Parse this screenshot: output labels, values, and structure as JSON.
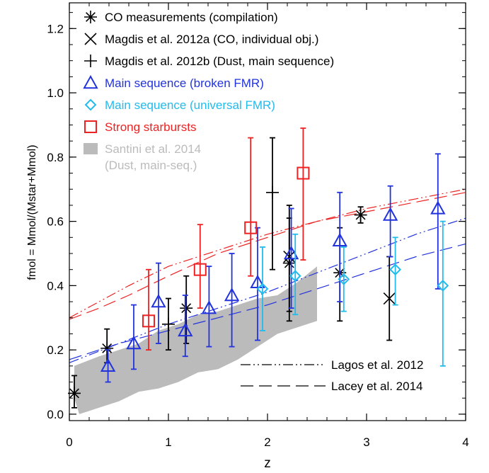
{
  "chart_data": {
    "type": "scatter",
    "xlabel": "z",
    "ylabel": "fmol = Mmol/(Mstar+Mmol)",
    "xlim": [
      0,
      4
    ],
    "ylim": [
      -0.02,
      1.28
    ],
    "x_ticks": [
      "0",
      "1",
      "2",
      "3",
      "4"
    ],
    "y_ticks": [
      "0.0",
      "0.2",
      "0.4",
      "0.6",
      "0.8",
      "1.0",
      "1.2"
    ],
    "x_tick_values": [
      0,
      1,
      2,
      3,
      4
    ],
    "y_tick_values": [
      0.0,
      0.2,
      0.4,
      0.6,
      0.8,
      1.0,
      1.2
    ],
    "legend_top": [
      {
        "label": "CO measurements (compilation)",
        "marker": "asterisk",
        "color": "#000000"
      },
      {
        "label": "Magdis et al. 2012a (CO, individual obj.)",
        "marker": "cross",
        "color": "#000000"
      },
      {
        "label": "Magdis et al. 2012b (Dust, main sequence)",
        "marker": "plus",
        "color": "#000000"
      },
      {
        "label": "Main sequence (broken FMR)",
        "marker": "triangle",
        "color": "#2233dd"
      },
      {
        "label": "Main sequence (universal FMR)",
        "marker": "diamond",
        "color": "#22bbee"
      },
      {
        "label": "Strong starbursts",
        "marker": "square",
        "color": "#ee2222"
      },
      {
        "label": "Santini et al. 2014",
        "label2": "(Dust, main-seq.)",
        "marker": "band",
        "color": "#bbbbbb"
      }
    ],
    "legend_bottom": [
      {
        "label": "Lagos et al. 2012",
        "style": "dash-dot"
      },
      {
        "label": "Lacey et al. 2014",
        "style": "long-dash"
      }
    ],
    "series": [
      {
        "name": "CO measurements (compilation)",
        "marker": "asterisk",
        "color": "#000000",
        "points": [
          {
            "x": 0.05,
            "y": 0.065,
            "lo": 0.02,
            "hi": 0.12
          },
          {
            "x": 0.38,
            "y": 0.205,
            "lo": 0.16,
            "hi": 0.265
          },
          {
            "x": 1.18,
            "y": 0.33,
            "lo": 0.22,
            "hi": 0.43
          },
          {
            "x": 2.22,
            "y": 0.47,
            "lo": 0.32,
            "hi": 0.61
          },
          {
            "x": 2.73,
            "y": 0.44,
            "lo": 0.29,
            "hi": 0.58
          },
          {
            "x": 2.94,
            "y": 0.62,
            "lo": 0.595,
            "hi": 0.645
          }
        ]
      },
      {
        "name": "Magdis et al. 2012a (CO, individual obj.)",
        "marker": "cross",
        "color": "#000000",
        "points": [
          {
            "x": 2.22,
            "y": 0.49,
            "lo": 0.29,
            "hi": 0.65
          },
          {
            "x": 3.23,
            "y": 0.36,
            "lo": 0.23,
            "hi": 0.49
          }
        ]
      },
      {
        "name": "Magdis et al. 2012b (Dust, main sequence)",
        "marker": "plus",
        "color": "#000000",
        "points": [
          {
            "x": 1.0,
            "y": 0.28,
            "lo": 0.2,
            "hi": 0.36
          },
          {
            "x": 2.05,
            "y": 0.69,
            "lo": 0.45,
            "hi": 0.86
          }
        ]
      },
      {
        "name": "Main sequence (broken FMR)",
        "marker": "triangle",
        "color": "#2233dd",
        "points": [
          {
            "x": 0.39,
            "y": 0.15,
            "lo": 0.1,
            "hi": 0.2
          },
          {
            "x": 0.65,
            "y": 0.22,
            "lo": 0.14,
            "hi": 0.34
          },
          {
            "x": 0.9,
            "y": 0.35,
            "lo": 0.22,
            "hi": 0.47
          },
          {
            "x": 1.17,
            "y": 0.26,
            "lo": 0.18,
            "hi": 0.37
          },
          {
            "x": 1.41,
            "y": 0.33,
            "lo": 0.21,
            "hi": 0.46
          },
          {
            "x": 1.64,
            "y": 0.37,
            "lo": 0.21,
            "hi": 0.5
          },
          {
            "x": 1.9,
            "y": 0.41,
            "lo": 0.23,
            "hi": 0.58
          },
          {
            "x": 2.24,
            "y": 0.5,
            "lo": 0.33,
            "hi": 0.64
          },
          {
            "x": 2.73,
            "y": 0.54,
            "lo": 0.35,
            "hi": 0.69
          },
          {
            "x": 3.24,
            "y": 0.62,
            "lo": 0.49,
            "hi": 0.71
          },
          {
            "x": 3.72,
            "y": 0.64,
            "lo": 0.39,
            "hi": 0.81
          }
        ]
      },
      {
        "name": "Main sequence (universal FMR)",
        "marker": "diamond",
        "color": "#22bbee",
        "points": [
          {
            "x": 1.95,
            "y": 0.39,
            "lo": 0.26,
            "hi": 0.52
          },
          {
            "x": 2.28,
            "y": 0.43,
            "lo": 0.31,
            "hi": 0.56
          },
          {
            "x": 2.77,
            "y": 0.42,
            "lo": 0.32,
            "hi": 0.52
          },
          {
            "x": 3.29,
            "y": 0.45,
            "lo": 0.34,
            "hi": 0.55
          },
          {
            "x": 3.77,
            "y": 0.4,
            "lo": 0.15,
            "hi": 0.6
          }
        ]
      },
      {
        "name": "Strong starbursts",
        "marker": "square",
        "color": "#ee2222",
        "points": [
          {
            "x": 0.8,
            "y": 0.29,
            "lo": 0.2,
            "hi": 0.45
          },
          {
            "x": 1.32,
            "y": 0.45,
            "lo": 0.33,
            "hi": 0.59
          },
          {
            "x": 1.83,
            "y": 0.58,
            "lo": 0.43,
            "hi": 0.86
          },
          {
            "x": 2.36,
            "y": 0.75,
            "lo": 0.48,
            "hi": 0.89
          }
        ]
      }
    ],
    "band": {
      "name": "Santini et al. 2014",
      "color": "#bbbbbb",
      "upper": [
        [
          0.05,
          0.15
        ],
        [
          0.3,
          0.18
        ],
        [
          0.5,
          0.2
        ],
        [
          0.7,
          0.22
        ],
        [
          0.9,
          0.26
        ],
        [
          1.1,
          0.28
        ],
        [
          1.3,
          0.31
        ],
        [
          1.5,
          0.32
        ],
        [
          1.7,
          0.34
        ],
        [
          1.9,
          0.36
        ],
        [
          2.1,
          0.37
        ],
        [
          2.3,
          0.41
        ],
        [
          2.5,
          0.46
        ]
      ],
      "lower": [
        [
          2.5,
          0.29
        ],
        [
          2.3,
          0.27
        ],
        [
          2.1,
          0.25
        ],
        [
          1.9,
          0.21
        ],
        [
          1.7,
          0.17
        ],
        [
          1.5,
          0.14
        ],
        [
          1.3,
          0.13
        ],
        [
          1.1,
          0.1
        ],
        [
          0.9,
          0.08
        ],
        [
          0.7,
          0.07
        ],
        [
          0.5,
          0.04
        ],
        [
          0.3,
          0.02
        ],
        [
          0.1,
          0.0
        ],
        [
          0.05,
          0.05
        ]
      ]
    },
    "models": [
      {
        "name": "Lagos et al. 2012",
        "style": "dash-dot",
        "color": "#ee2222",
        "points": [
          [
            0.0,
            0.3
          ],
          [
            0.3,
            0.35
          ],
          [
            0.6,
            0.4
          ],
          [
            1.0,
            0.46
          ],
          [
            1.5,
            0.51
          ],
          [
            2.0,
            0.56
          ],
          [
            2.5,
            0.6
          ],
          [
            3.0,
            0.64
          ],
          [
            3.5,
            0.67
          ],
          [
            4.0,
            0.7
          ]
        ]
      },
      {
        "name": "Lacey et al. 2014",
        "style": "long-dash",
        "color": "#ee2222",
        "points": [
          [
            0.0,
            0.295
          ],
          [
            0.3,
            0.33
          ],
          [
            0.6,
            0.37
          ],
          [
            1.0,
            0.43
          ],
          [
            1.5,
            0.5
          ],
          [
            2.0,
            0.55
          ],
          [
            2.5,
            0.6
          ],
          [
            3.0,
            0.63
          ],
          [
            3.5,
            0.66
          ],
          [
            4.0,
            0.69
          ]
        ]
      },
      {
        "name": "Lagos et al. 2012",
        "style": "dash-dot",
        "color": "#2233dd",
        "points": [
          [
            0.0,
            0.16
          ],
          [
            0.5,
            0.22
          ],
          [
            1.0,
            0.28
          ],
          [
            1.5,
            0.33
          ],
          [
            2.0,
            0.38
          ],
          [
            2.5,
            0.44
          ],
          [
            3.0,
            0.5
          ],
          [
            3.5,
            0.56
          ],
          [
            4.0,
            0.61
          ]
        ]
      },
      {
        "name": "Lacey et al. 2014",
        "style": "long-dash",
        "color": "#2233dd",
        "points": [
          [
            0.0,
            0.17
          ],
          [
            0.5,
            0.22
          ],
          [
            1.0,
            0.26
          ],
          [
            1.5,
            0.3
          ],
          [
            2.0,
            0.34
          ],
          [
            2.5,
            0.39
          ],
          [
            3.0,
            0.44
          ],
          [
            3.5,
            0.49
          ],
          [
            4.0,
            0.53
          ]
        ]
      }
    ],
    "grid": false,
    "legend_position": "top-left"
  }
}
